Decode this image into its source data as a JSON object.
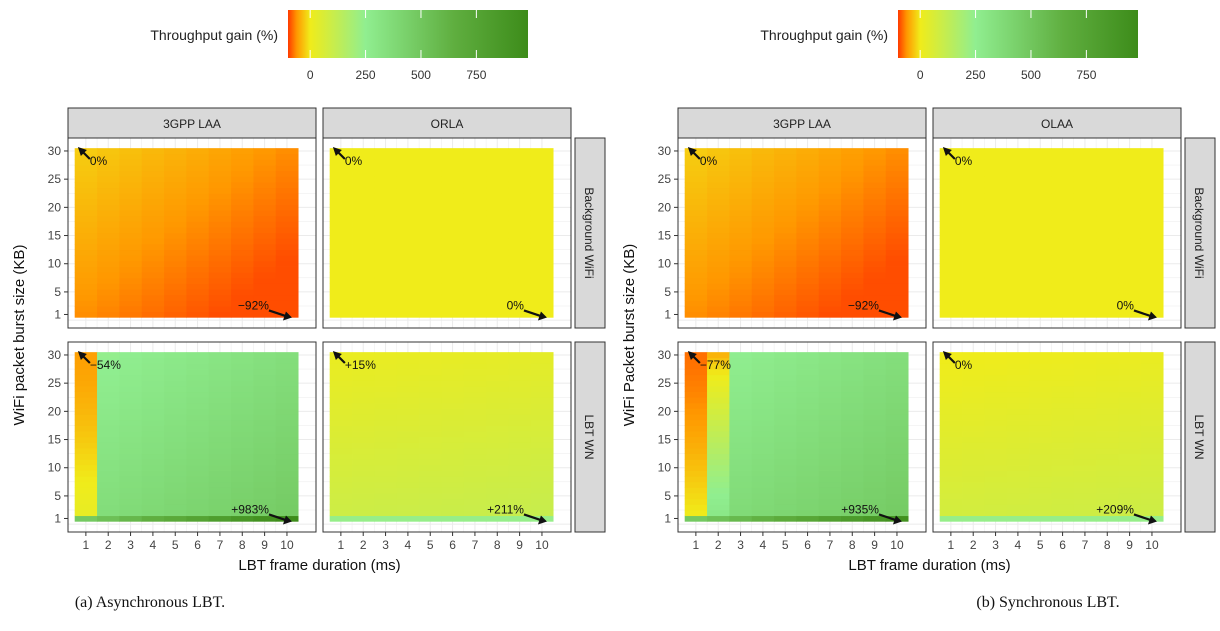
{
  "colors": {
    "scale": [
      "#ff3a00",
      "#ff9800",
      "#f0ec1a",
      "#90ee90",
      "#5fae3f",
      "#3d8c1a"
    ],
    "strip_bg": "#d9d9d9",
    "grid": "#ebebeb",
    "panel_border": "#333333"
  },
  "chart_data": [
    {
      "type": "heatmap",
      "caption": "(a) Asynchronous LBT.",
      "legend": {
        "title": "Throughput gain (%)",
        "ticks": [
          "0",
          "250",
          "500",
          "750"
        ],
        "tick_values": [
          0,
          250,
          500,
          750
        ],
        "range": [
          -100,
          983
        ]
      },
      "xlabel": "LBT frame duration (ms)",
      "ylabel": "WiFi packet burst size (KB)",
      "x_ticks": [
        1,
        2,
        3,
        4,
        5,
        6,
        7,
        8,
        9,
        10
      ],
      "y_ticks": [
        1,
        5,
        10,
        15,
        20,
        25,
        30
      ],
      "columns": [
        "3GPP LAA",
        "ORLA"
      ],
      "rows": [
        "Background WiFi",
        "LBT WN"
      ],
      "panels": [
        {
          "row": 0,
          "col": 0,
          "corner_min": -92,
          "corner_max": 0,
          "annotations": [
            {
              "label": "0%",
              "x": 1,
              "y": 30
            },
            {
              "label": "−92%",
              "x": 10,
              "y": 1
            }
          ]
        },
        {
          "row": 0,
          "col": 1,
          "corner_min": 0,
          "corner_max": 0,
          "annotations": [
            {
              "label": "0%",
              "x": 1,
              "y": 30
            },
            {
              "label": "0%",
              "x": 10,
              "y": 1
            }
          ]
        },
        {
          "row": 1,
          "col": 0,
          "corner_min": -54,
          "corner_max": 983,
          "annotations": [
            {
              "label": "−54%",
              "x": 1,
              "y": 30
            },
            {
              "label": "+983%",
              "x": 10,
              "y": 1
            }
          ]
        },
        {
          "row": 1,
          "col": 1,
          "corner_min": 15,
          "corner_max": 211,
          "annotations": [
            {
              "label": "+15%",
              "x": 1,
              "y": 30
            },
            {
              "label": "+211%",
              "x": 10,
              "y": 1
            }
          ]
        }
      ]
    },
    {
      "type": "heatmap",
      "caption": "(b) Synchronous LBT.",
      "legend": {
        "title": "Throughput gain (%)",
        "ticks": [
          "0",
          "250",
          "500",
          "750"
        ],
        "tick_values": [
          0,
          250,
          500,
          750
        ],
        "range": [
          -100,
          983
        ]
      },
      "xlabel": "LBT frame duration (ms)",
      "ylabel": "WiFi Packet burst size (KB)",
      "x_ticks": [
        1,
        2,
        3,
        4,
        5,
        6,
        7,
        8,
        9,
        10
      ],
      "y_ticks": [
        1,
        5,
        10,
        15,
        20,
        25,
        30
      ],
      "columns": [
        "3GPP LAA",
        "OLAA"
      ],
      "rows": [
        "Background WiFi",
        "LBT WN"
      ],
      "panels": [
        {
          "row": 0,
          "col": 0,
          "corner_min": -92,
          "corner_max": 0,
          "annotations": [
            {
              "label": "0%",
              "x": 1,
              "y": 30
            },
            {
              "label": "−92%",
              "x": 10,
              "y": 1
            }
          ]
        },
        {
          "row": 0,
          "col": 1,
          "corner_min": 0,
          "corner_max": 0,
          "annotations": [
            {
              "label": "0%",
              "x": 1,
              "y": 30
            },
            {
              "label": "0%",
              "x": 10,
              "y": 1
            }
          ]
        },
        {
          "row": 1,
          "col": 0,
          "corner_min": -77,
          "corner_max": 935,
          "annotations": [
            {
              "label": "−77%",
              "x": 1,
              "y": 30
            },
            {
              "label": "+935%",
              "x": 10,
              "y": 1
            }
          ]
        },
        {
          "row": 1,
          "col": 1,
          "corner_min": 0,
          "corner_max": 209,
          "annotations": [
            {
              "label": "0%",
              "x": 1,
              "y": 30
            },
            {
              "label": "+209%",
              "x": 10,
              "y": 1
            }
          ]
        }
      ]
    }
  ]
}
